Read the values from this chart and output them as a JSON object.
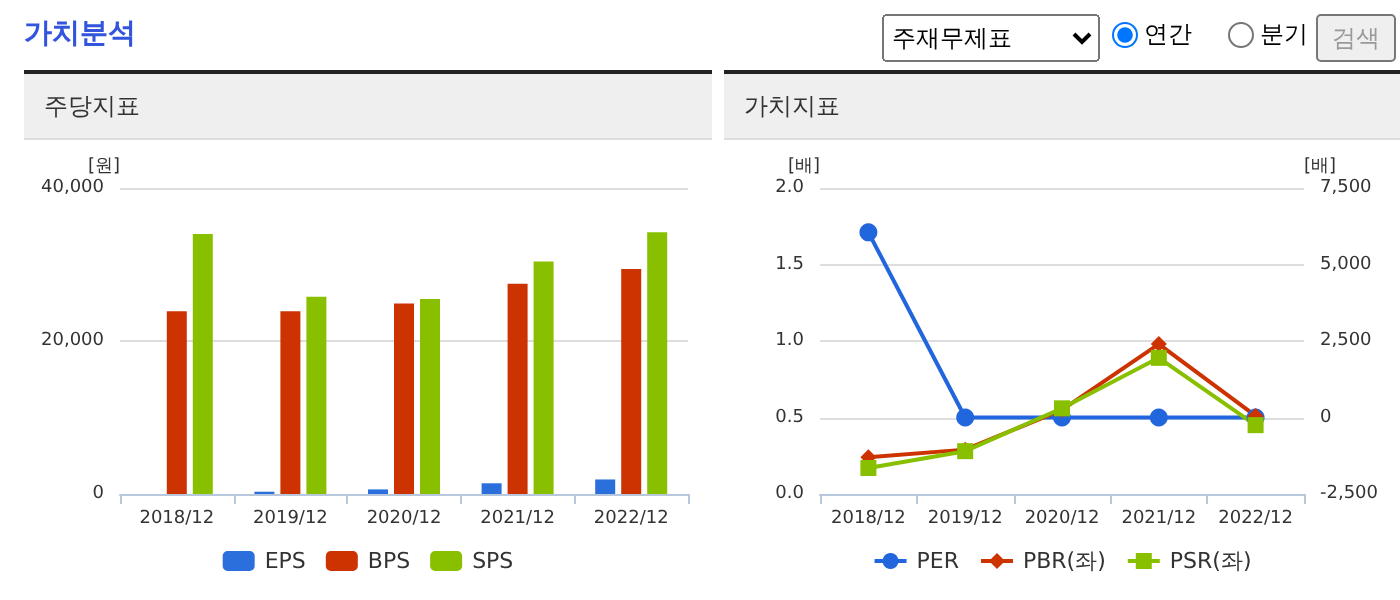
{
  "chart_data": [
    {
      "type": "other",
      "title": "가치분석",
      "annotations": [
        "주재무제표",
        "연간",
        "분기",
        "검색"
      ]
    },
    {
      "type": "bar",
      "title": "주당지표",
      "ylabel": "[원]",
      "categories": [
        "2018/12",
        "2019/12",
        "2020/12",
        "2021/12",
        "2022/12"
      ],
      "series": [
        {
          "name": "EPS",
          "color": "#2a6fdb",
          "values": [
            0,
            300,
            600,
            1400,
            1900
          ]
        },
        {
          "name": "BPS",
          "color": "#cc3300",
          "values": [
            23900,
            23900,
            24900,
            27500,
            29400
          ]
        },
        {
          "name": "SPS",
          "color": "#88c000",
          "values": [
            34000,
            25800,
            25500,
            30400,
            34200
          ]
        }
      ],
      "ylim": [
        0,
        40000
      ],
      "yticks": [
        {
          "value": 0,
          "label": "0"
        },
        {
          "value": 20000,
          "label": "20,000"
        },
        {
          "value": 40000,
          "label": "40,000"
        }
      ],
      "grid": "y",
      "legend": "bottom"
    },
    {
      "type": "line",
      "title": "가치지표",
      "ylabel": "[배]",
      "y2label": "[배]",
      "categories": [
        "2018/12",
        "2019/12",
        "2020/12",
        "2021/12",
        "2022/12"
      ],
      "series": [
        {
          "name": "PER",
          "color": "#2266dd",
          "axis": "y2",
          "marker": "circle",
          "values": [
            6050,
            0,
            0,
            0,
            0
          ]
        },
        {
          "name": "PBR(좌)",
          "color": "#cc3300",
          "marker": "diamond",
          "values": [
            0.24,
            0.29,
            0.55,
            0.98,
            0.51
          ]
        },
        {
          "name": "PSR(좌)",
          "color": "#88c000",
          "marker": "square",
          "values": [
            0.17,
            0.28,
            0.56,
            0.89,
            0.45
          ]
        }
      ],
      "ylim": [
        0,
        2
      ],
      "yticks": [
        {
          "value": 0,
          "label": "0.0"
        },
        {
          "value": 0.5,
          "label": "0.5"
        },
        {
          "value": 1,
          "label": "1.0"
        },
        {
          "value": 1.5,
          "label": "1.5"
        },
        {
          "value": 2,
          "label": "2.0"
        }
      ],
      "y2lim": [
        -2500,
        7500
      ],
      "y2ticks": [
        {
          "value": -2500,
          "label": "-2,500"
        },
        {
          "value": 0,
          "label": "0"
        },
        {
          "value": 2500,
          "label": "2,500"
        },
        {
          "value": 5000,
          "label": "5,000"
        },
        {
          "value": 7500,
          "label": "7,500"
        }
      ],
      "grid": "y",
      "legend": "bottom",
      "line_style": "solid"
    }
  ]
}
